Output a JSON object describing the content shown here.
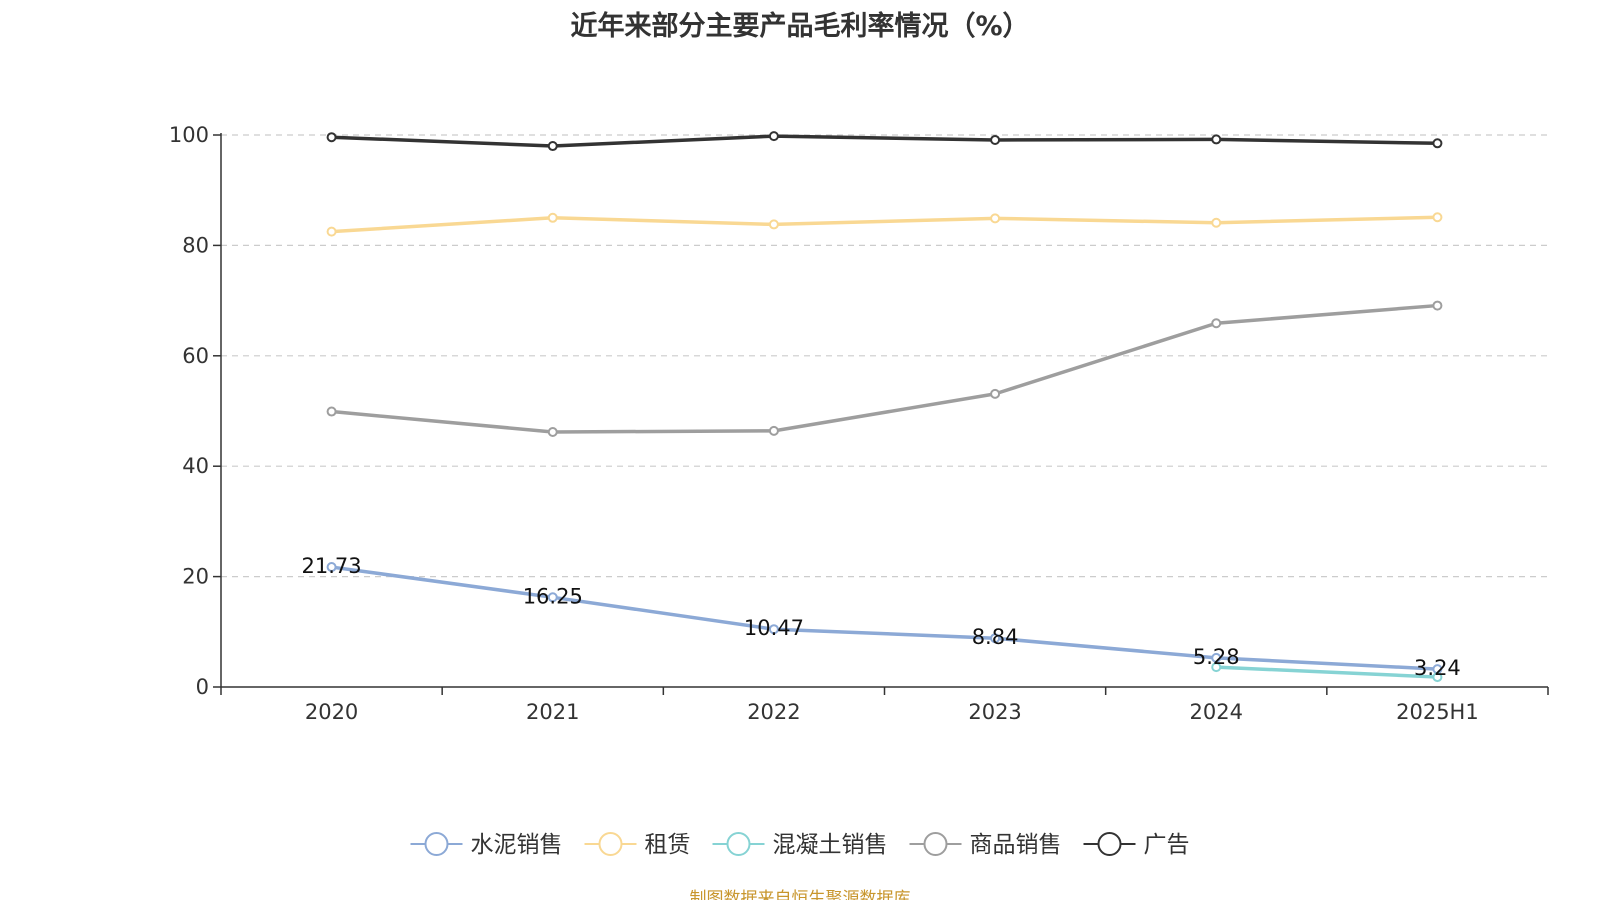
{
  "chart_data": {
    "type": "line",
    "title": "近年来部分主要产品毛利率情况（%）",
    "source": "制图数据来自恒生聚源数据库",
    "categories": [
      "2020",
      "2021",
      "2022",
      "2023",
      "2024",
      "2025H1"
    ],
    "ylim": [
      0,
      100
    ],
    "yticks": [
      0,
      20,
      40,
      60,
      80,
      100
    ],
    "grid": true,
    "legend_position": "bottom",
    "series": [
      {
        "name": "水泥销售",
        "color": "#8ca9d6",
        "values": [
          21.73,
          16.25,
          10.47,
          8.84,
          5.28,
          3.24
        ],
        "labels": [
          "21.73",
          "16.25",
          "10.47",
          "8.84",
          "5.28",
          "3.24"
        ]
      },
      {
        "name": "租赁",
        "color": "#f9d893",
        "values": [
          82.5,
          85.0,
          83.8,
          84.9,
          84.1,
          85.1
        ],
        "labels": []
      },
      {
        "name": "混凝土销售",
        "color": "#86d3d4",
        "values": [
          null,
          null,
          null,
          null,
          3.6,
          1.8
        ],
        "labels": []
      },
      {
        "name": "商品销售",
        "color": "#9e9e9e",
        "values": [
          49.9,
          46.2,
          46.4,
          53.1,
          65.9,
          69.1
        ],
        "labels": []
      },
      {
        "name": "广告",
        "color": "#333333",
        "values": [
          99.6,
          98.0,
          99.8,
          99.1,
          99.2,
          98.5
        ],
        "labels": []
      }
    ]
  }
}
